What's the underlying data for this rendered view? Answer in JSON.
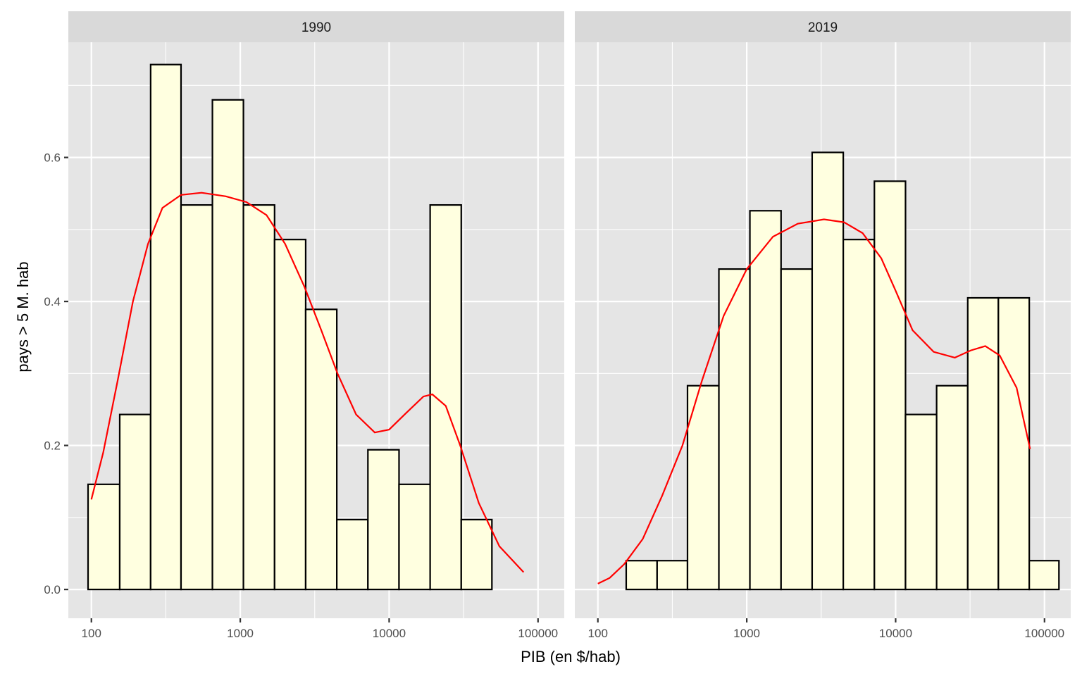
{
  "chart_data": {
    "type": "bar",
    "subtype": "faceted-histogram-with-density",
    "xlabel": "PIB (en $/hab)",
    "ylabel": "pays > 5 M. hab",
    "x_scale": "log10",
    "xlim": [
      70,
      150000
    ],
    "ylim": [
      -0.04,
      0.76
    ],
    "x_ticks": [
      100,
      1000,
      10000,
      100000
    ],
    "x_tick_labels": [
      "100",
      "1000",
      "10000",
      "100000"
    ],
    "y_ticks": [
      0,
      0.2,
      0.4,
      0.6
    ],
    "y_tick_labels": [
      "0.0",
      "0.2",
      "0.4",
      "0.6"
    ],
    "grid": true,
    "colors": {
      "bar_fill": "#ffffe0",
      "bar_outline": "#000000",
      "density": "#ff0000",
      "panel": "#e5e5e5",
      "strip": "#d9d9d9"
    },
    "facets": [
      {
        "label": "1990",
        "bins": [
          {
            "x0": 95,
            "x1": 155,
            "y": 0.146
          },
          {
            "x0": 155,
            "x1": 250,
            "y": 0.243
          },
          {
            "x0": 250,
            "x1": 400,
            "y": 0.729
          },
          {
            "x0": 400,
            "x1": 650,
            "y": 0.534
          },
          {
            "x0": 650,
            "x1": 1050,
            "y": 0.68
          },
          {
            "x0": 1050,
            "x1": 1700,
            "y": 0.534
          },
          {
            "x0": 1700,
            "x1": 2750,
            "y": 0.486
          },
          {
            "x0": 2750,
            "x1": 4450,
            "y": 0.389
          },
          {
            "x0": 4450,
            "x1": 7200,
            "y": 0.097
          },
          {
            "x0": 7200,
            "x1": 11650,
            "y": 0.194
          },
          {
            "x0": 11650,
            "x1": 18850,
            "y": 0.146
          },
          {
            "x0": 18850,
            "x1": 30500,
            "y": 0.534
          },
          {
            "x0": 30500,
            "x1": 49000,
            "y": 0.097
          },
          {
            "x0": 49000,
            "x1": 79000,
            "y": 0
          },
          {
            "x0": 79000,
            "x1": 125000,
            "y": 0
          }
        ],
        "density": [
          [
            100,
            0.125
          ],
          [
            120,
            0.19
          ],
          [
            150,
            0.29
          ],
          [
            190,
            0.4
          ],
          [
            240,
            0.48
          ],
          [
            300,
            0.53
          ],
          [
            400,
            0.548
          ],
          [
            550,
            0.551
          ],
          [
            800,
            0.546
          ],
          [
            1100,
            0.538
          ],
          [
            1500,
            0.52
          ],
          [
            2000,
            0.48
          ],
          [
            2700,
            0.42
          ],
          [
            3500,
            0.36
          ],
          [
            4500,
            0.3
          ],
          [
            6000,
            0.243
          ],
          [
            8000,
            0.218
          ],
          [
            10000,
            0.222
          ],
          [
            13000,
            0.245
          ],
          [
            17000,
            0.268
          ],
          [
            19500,
            0.271
          ],
          [
            24000,
            0.255
          ],
          [
            30000,
            0.2
          ],
          [
            40000,
            0.12
          ],
          [
            55000,
            0.06
          ],
          [
            80000,
            0.024
          ]
        ]
      },
      {
        "label": "2019",
        "bins": [
          {
            "x0": 95,
            "x1": 155,
            "y": 0
          },
          {
            "x0": 155,
            "x1": 250,
            "y": 0.04
          },
          {
            "x0": 250,
            "x1": 400,
            "y": 0.04
          },
          {
            "x0": 400,
            "x1": 650,
            "y": 0.283
          },
          {
            "x0": 650,
            "x1": 1050,
            "y": 0.445
          },
          {
            "x0": 1050,
            "x1": 1700,
            "y": 0.526
          },
          {
            "x0": 1700,
            "x1": 2750,
            "y": 0.445
          },
          {
            "x0": 2750,
            "x1": 4450,
            "y": 0.607
          },
          {
            "x0": 4450,
            "x1": 7200,
            "y": 0.486
          },
          {
            "x0": 7200,
            "x1": 11650,
            "y": 0.567
          },
          {
            "x0": 11650,
            "x1": 18850,
            "y": 0.243
          },
          {
            "x0": 18850,
            "x1": 30500,
            "y": 0.283
          },
          {
            "x0": 30500,
            "x1": 49000,
            "y": 0.405
          },
          {
            "x0": 49000,
            "x1": 79000,
            "y": 0.405
          },
          {
            "x0": 79000,
            "x1": 125000,
            "y": 0.04
          }
        ],
        "density": [
          [
            100,
            0.008
          ],
          [
            120,
            0.016
          ],
          [
            150,
            0.035
          ],
          [
            200,
            0.07
          ],
          [
            270,
            0.13
          ],
          [
            370,
            0.2
          ],
          [
            500,
            0.29
          ],
          [
            700,
            0.38
          ],
          [
            1000,
            0.445
          ],
          [
            1500,
            0.49
          ],
          [
            2200,
            0.508
          ],
          [
            3300,
            0.514
          ],
          [
            4500,
            0.51
          ],
          [
            6000,
            0.495
          ],
          [
            8000,
            0.46
          ],
          [
            10000,
            0.415
          ],
          [
            13000,
            0.36
          ],
          [
            18000,
            0.33
          ],
          [
            25000,
            0.322
          ],
          [
            32000,
            0.332
          ],
          [
            40000,
            0.338
          ],
          [
            50000,
            0.325
          ],
          [
            65000,
            0.28
          ],
          [
            80000,
            0.195
          ]
        ]
      }
    ]
  }
}
